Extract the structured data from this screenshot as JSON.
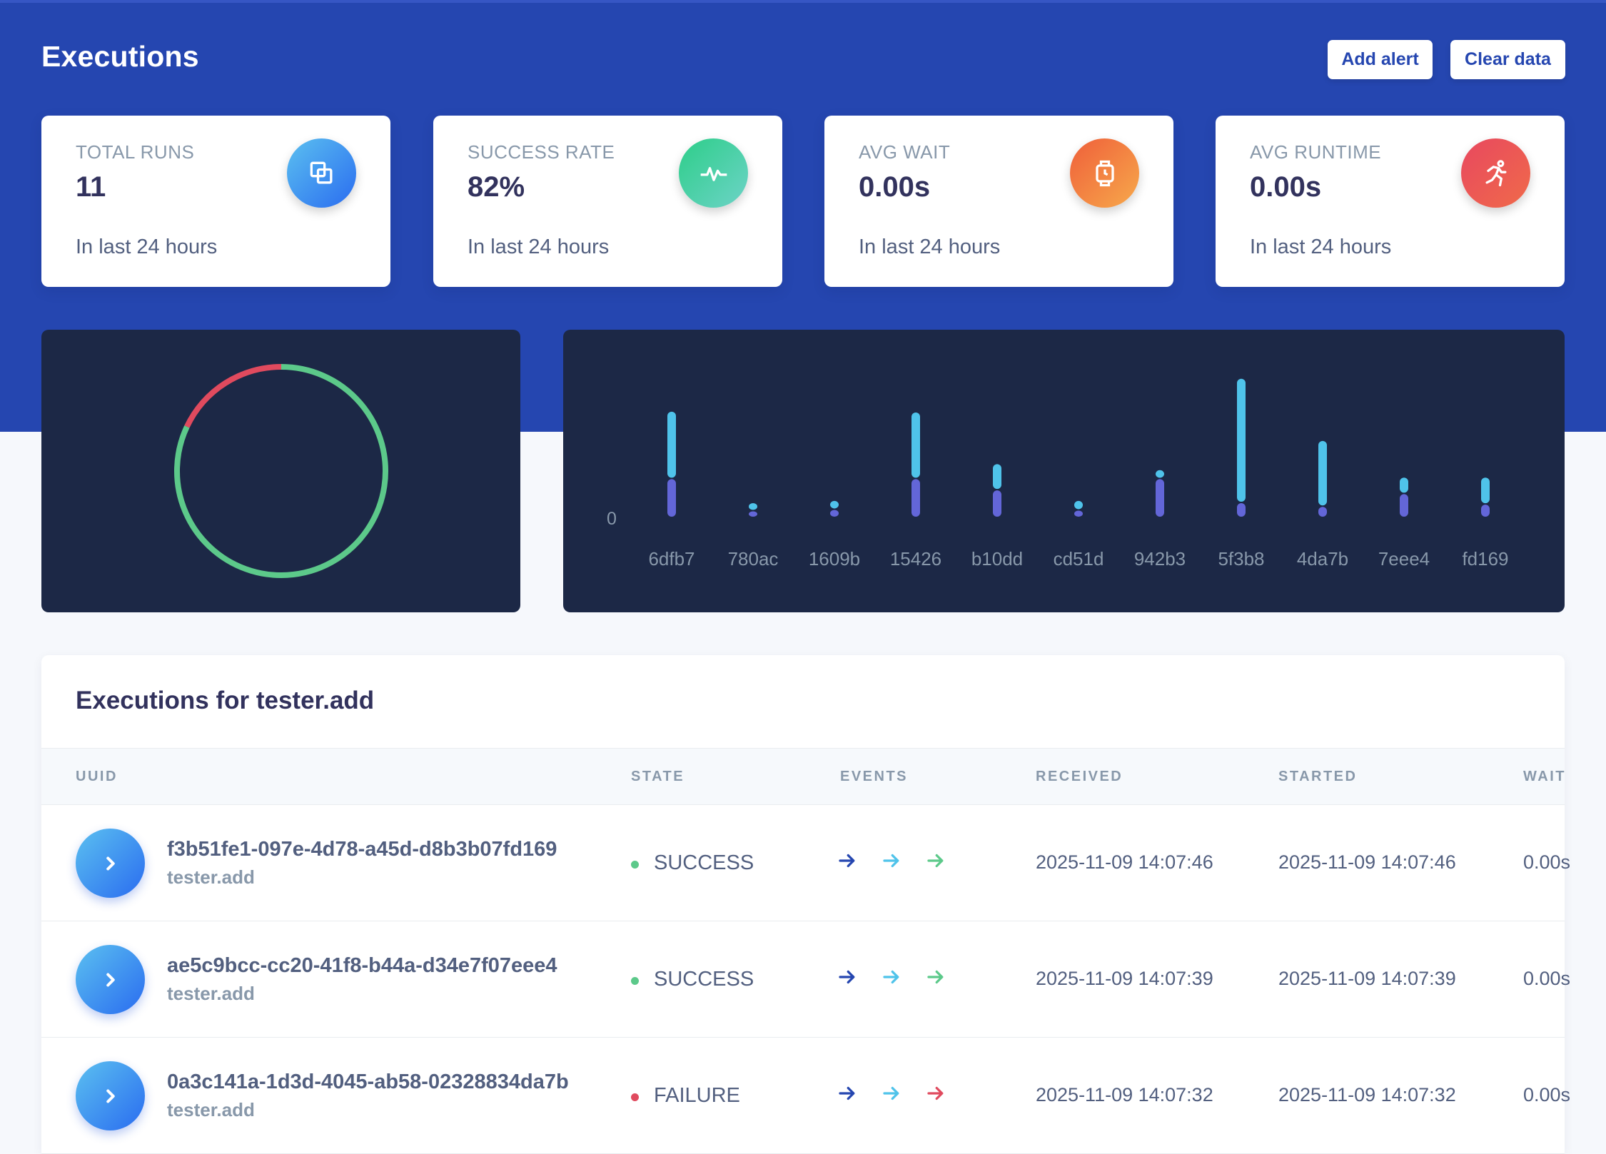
{
  "header": {
    "title": "Executions",
    "add_alert_label": "Add alert",
    "clear_data_label": "Clear data"
  },
  "stats": [
    {
      "label": "TOTAL RUNS",
      "value": "11",
      "subtitle": "In last 24 hours",
      "icon": "copy-icon",
      "color": "#2a6cf0"
    },
    {
      "label": "SUCCESS RATE",
      "value": "82%",
      "subtitle": "In last 24 hours",
      "icon": "pulse-icon",
      "color": "#2dce89"
    },
    {
      "label": "AVG WAIT",
      "value": "0.00s",
      "subtitle": "In last 24 hours",
      "icon": "watch-icon",
      "color": "#fb6340"
    },
    {
      "label": "AVG RUNTIME",
      "value": "0.00s",
      "subtitle": "In last 24 hours",
      "icon": "running-icon",
      "color": "#f5365c"
    }
  ],
  "chart_data": [
    {
      "type": "pie",
      "labels": [
        "",
        ""
      ],
      "values": [
        82,
        18
      ],
      "colors": [
        "#5cc98a",
        "#e04a5e"
      ]
    },
    {
      "type": "bar",
      "stacked": true,
      "categories": [
        "6dfb7",
        "780ac",
        "1609b",
        "15426",
        "b10dd",
        "cd51d",
        "942b3",
        "5f3b8",
        "4da7b",
        "7eee4",
        "fd169"
      ],
      "series": [
        {
          "values": [
            52,
            9,
            11,
            52,
            37,
            10,
            52,
            20,
            15,
            32,
            18
          ],
          "color": "#6366d8"
        },
        {
          "values": [
            90,
            11,
            12,
            89,
            35,
            13,
            12,
            166,
            88,
            22,
            36
          ],
          "color": "#4fc3ea"
        }
      ],
      "y_tick_label": "0",
      "ylim": [
        0,
        220
      ]
    }
  ],
  "table": {
    "title": "Executions for tester.add",
    "columns": [
      "UUID",
      "STATE",
      "EVENTS",
      "RECEIVED",
      "STARTED",
      "WAIT"
    ],
    "rows": [
      {
        "uuid": "f3b51fe1-097e-4d78-a45d-d8b3b07fd169",
        "task": "tester.add",
        "state": "SUCCESS",
        "state_color": "#5cc98a",
        "events": [
          "#2546b0",
          "#4fc3ea",
          "#5cc98a"
        ],
        "received": "2025-11-09 14:07:46",
        "started": "2025-11-09 14:07:46",
        "wait": "0.00s"
      },
      {
        "uuid": "ae5c9bcc-cc20-41f8-b44a-d34e7f07eee4",
        "task": "tester.add",
        "state": "SUCCESS",
        "state_color": "#5cc98a",
        "events": [
          "#2546b0",
          "#4fc3ea",
          "#5cc98a"
        ],
        "received": "2025-11-09 14:07:39",
        "started": "2025-11-09 14:07:39",
        "wait": "0.00s"
      },
      {
        "uuid": "0a3c141a-1d3d-4045-ab58-02328834da7b",
        "task": "tester.add",
        "state": "FAILURE",
        "state_color": "#e04a5e",
        "events": [
          "#2546b0",
          "#4fc3ea",
          "#e04a5e"
        ],
        "received": "2025-11-09 14:07:32",
        "started": "2025-11-09 14:07:32",
        "wait": "0.00s"
      }
    ]
  }
}
